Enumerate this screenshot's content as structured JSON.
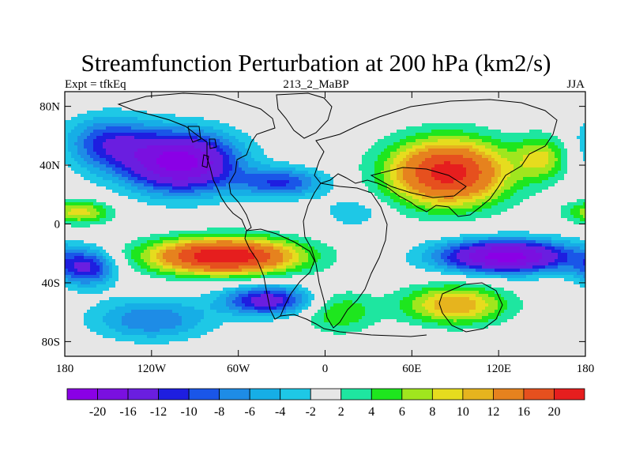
{
  "figure": {
    "title": "Streamfunction Perturbation at 200 hPa (km2/s)",
    "left_string": "Expt = tfkEq",
    "center_string": "213_2_MaBP",
    "right_string": "JJA"
  },
  "axes": {
    "lon_ticks": [
      {
        "value": -180,
        "label": "180"
      },
      {
        "value": -120,
        "label": "120W"
      },
      {
        "value": -60,
        "label": "60W"
      },
      {
        "value": 0,
        "label": "0"
      },
      {
        "value": 60,
        "label": "60E"
      },
      {
        "value": 120,
        "label": "120E"
      },
      {
        "value": 180,
        "label": "180"
      }
    ],
    "lat_ticks": [
      {
        "value": 80,
        "label": "80N"
      },
      {
        "value": 40,
        "label": "40N"
      },
      {
        "value": 0,
        "label": "0"
      },
      {
        "value": -40,
        "label": "40S"
      },
      {
        "value": -80,
        "label": "80S"
      }
    ],
    "lon_range": [
      -180,
      180
    ],
    "lat_range": [
      -90,
      90
    ]
  },
  "colorbar": {
    "colors": [
      "#8a00e6",
      "#7a10e0",
      "#6a1ee0",
      "#1e1ee0",
      "#1a56e8",
      "#1e8ce6",
      "#16aee6",
      "#1ec8e6",
      "#e6e6e6",
      "#1ee6a0",
      "#1ee61e",
      "#a0e61e",
      "#e6dc1e",
      "#e6b41e",
      "#e6821e",
      "#e6501e",
      "#e61e1e"
    ],
    "labels": [
      "-20",
      "-16",
      "-12",
      "-10",
      "-8",
      "-6",
      "-4",
      "-2",
      "2",
      "4",
      "6",
      "8",
      "10",
      "12",
      "16",
      "20"
    ]
  },
  "field": {
    "description_levels_note": "",
    "blobs": [
      {
        "lon": -100,
        "lat": 42,
        "slon": 38,
        "slat": 20,
        "amp": -22
      },
      {
        "lon": -150,
        "lat": 55,
        "slon": 30,
        "slat": 18,
        "amp": -10
      },
      {
        "lon": -30,
        "lat": 28,
        "slon": 30,
        "slat": 10,
        "amp": -10
      },
      {
        "lon": 85,
        "lat": 35,
        "slon": 40,
        "slat": 22,
        "amp": 22
      },
      {
        "lon": 150,
        "lat": 45,
        "slon": 18,
        "slat": 15,
        "amp": 8
      },
      {
        "lon": -70,
        "lat": -22,
        "slon": 50,
        "slat": 12,
        "amp": 24
      },
      {
        "lon": -165,
        "lat": -30,
        "slon": 20,
        "slat": 12,
        "amp": -12
      },
      {
        "lon": 125,
        "lat": -22,
        "slon": 45,
        "slat": 11,
        "amp": -22
      },
      {
        "lon": 90,
        "lat": -55,
        "slon": 35,
        "slat": 13,
        "amp": 12
      },
      {
        "lon": -40,
        "lat": -52,
        "slon": 30,
        "slat": 10,
        "amp": -14
      },
      {
        "lon": -170,
        "lat": 8,
        "slon": 22,
        "slat": 8,
        "amp": 9
      },
      {
        "lon": -120,
        "lat": -65,
        "slon": 40,
        "slat": 14,
        "amp": -8
      },
      {
        "lon": 20,
        "lat": 8,
        "slon": 20,
        "slat": 10,
        "amp": -4
      },
      {
        "lon": 10,
        "lat": -60,
        "slon": 25,
        "slat": 14,
        "amp": 6
      }
    ]
  }
}
